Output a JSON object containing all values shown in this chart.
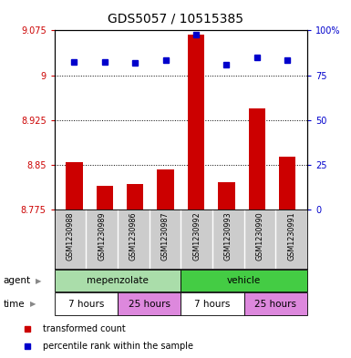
{
  "title": "GDS5057 / 10515385",
  "samples": [
    "GSM1230988",
    "GSM1230989",
    "GSM1230986",
    "GSM1230987",
    "GSM1230992",
    "GSM1230993",
    "GSM1230990",
    "GSM1230991"
  ],
  "bar_values": [
    8.855,
    8.814,
    8.818,
    8.842,
    9.068,
    8.82,
    8.945,
    8.863
  ],
  "dot_values": [
    9.022,
    9.022,
    9.02,
    9.025,
    9.068,
    9.018,
    9.03,
    9.025
  ],
  "bar_base": 8.775,
  "ylim_left": [
    8.775,
    9.075
  ],
  "ylim_right": [
    0,
    100
  ],
  "yticks_left": [
    8.775,
    8.85,
    8.925,
    9.0,
    9.075
  ],
  "ytick_labels_left": [
    "8.775",
    "8.85",
    "8.925",
    "9",
    "9.075"
  ],
  "yticks_right": [
    0,
    25,
    50,
    75,
    100
  ],
  "ytick_labels_right": [
    "0",
    "25",
    "50",
    "75",
    "100%"
  ],
  "bar_color": "#cc0000",
  "dot_color": "#0000cc",
  "agent_groups": [
    {
      "label": "mepenzolate",
      "start": 0,
      "end": 4,
      "color": "#aaddaa"
    },
    {
      "label": "vehicle",
      "start": 4,
      "end": 8,
      "color": "#44cc44"
    }
  ],
  "time_groups": [
    {
      "label": "7 hours",
      "start": 0,
      "end": 2,
      "color": "#ffffff"
    },
    {
      "label": "25 hours",
      "start": 2,
      "end": 4,
      "color": "#dd88dd"
    },
    {
      "label": "7 hours",
      "start": 4,
      "end": 6,
      "color": "#ffffff"
    },
    {
      "label": "25 hours",
      "start": 6,
      "end": 8,
      "color": "#dd88dd"
    }
  ],
  "legend_items": [
    {
      "label": "transformed count",
      "color": "#cc0000"
    },
    {
      "label": "percentile rank within the sample",
      "color": "#0000cc"
    }
  ],
  "xlabel_agent": "agent",
  "xlabel_time": "time",
  "bar_width": 0.55,
  "sample_bg": "#cccccc",
  "fig_bg": "#ffffff"
}
